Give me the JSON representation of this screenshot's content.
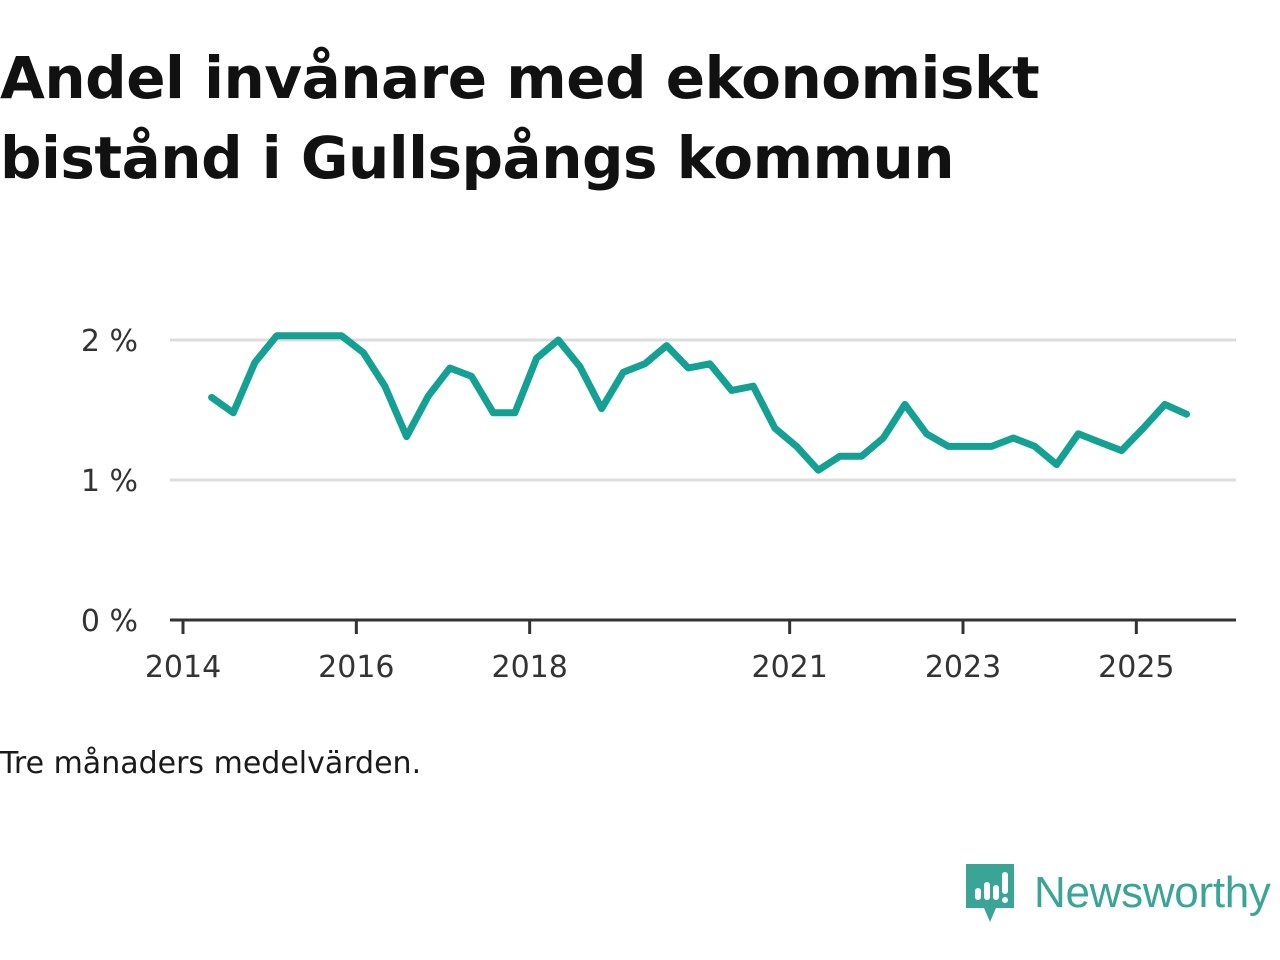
{
  "title": "Andel invånare med ekonomiskt bistånd i Gullspångs kommun",
  "note": "Tre månaders medelvärden.",
  "brand": "Newsworthy",
  "colors": {
    "line": "#14a193",
    "grid": "#dddddd",
    "axis": "#333333",
    "brand": "#3aa597"
  },
  "chart_data": {
    "type": "line",
    "title": "Andel invånare med ekonomiskt bistånd i Gullspångs kommun",
    "xlabel": "",
    "ylabel": "",
    "ylim": [
      0,
      2.2
    ],
    "xlim": [
      2013.85,
      2026.15
    ],
    "yticks": [
      {
        "value": 0,
        "label": "0 %"
      },
      {
        "value": 1,
        "label": "1 %"
      },
      {
        "value": 2,
        "label": "2 %"
      }
    ],
    "xticks": [
      {
        "value": 2014,
        "label": "2014"
      },
      {
        "value": 2016,
        "label": "2016"
      },
      {
        "value": 2018,
        "label": "2018"
      },
      {
        "value": 2021,
        "label": "2021"
      },
      {
        "value": 2023,
        "label": "2023"
      },
      {
        "value": 2025,
        "label": "2025"
      }
    ],
    "series": [
      {
        "name": "Andel invånare med ekonomiskt bistånd",
        "x": [
          2014.33,
          2014.58,
          2014.83,
          2015.08,
          2015.33,
          2015.58,
          2015.83,
          2016.08,
          2016.33,
          2016.58,
          2016.83,
          2017.08,
          2017.33,
          2017.58,
          2017.83,
          2018.08,
          2018.33,
          2018.58,
          2018.83,
          2019.08,
          2019.33,
          2019.58,
          2019.83,
          2020.08,
          2020.33,
          2020.58,
          2020.83,
          2021.08,
          2021.33,
          2021.58,
          2021.83,
          2022.08,
          2022.33,
          2022.58,
          2022.83,
          2023.08,
          2023.33,
          2023.58,
          2023.83,
          2024.08,
          2024.33,
          2024.58,
          2024.83,
          2025.08,
          2025.33,
          2025.58
        ],
        "values": [
          1.59,
          1.48,
          1.84,
          2.03,
          2.03,
          2.03,
          2.03,
          1.91,
          1.67,
          1.31,
          1.6,
          1.8,
          1.74,
          1.48,
          1.48,
          1.87,
          2.0,
          1.81,
          1.51,
          1.77,
          1.83,
          1.96,
          1.8,
          1.83,
          1.64,
          1.67,
          1.37,
          1.24,
          1.07,
          1.17,
          1.17,
          1.3,
          1.54,
          1.33,
          1.24,
          1.24,
          1.24,
          1.3,
          1.24,
          1.11,
          1.33,
          1.27,
          1.21,
          1.37,
          1.54,
          1.47
        ]
      }
    ]
  }
}
